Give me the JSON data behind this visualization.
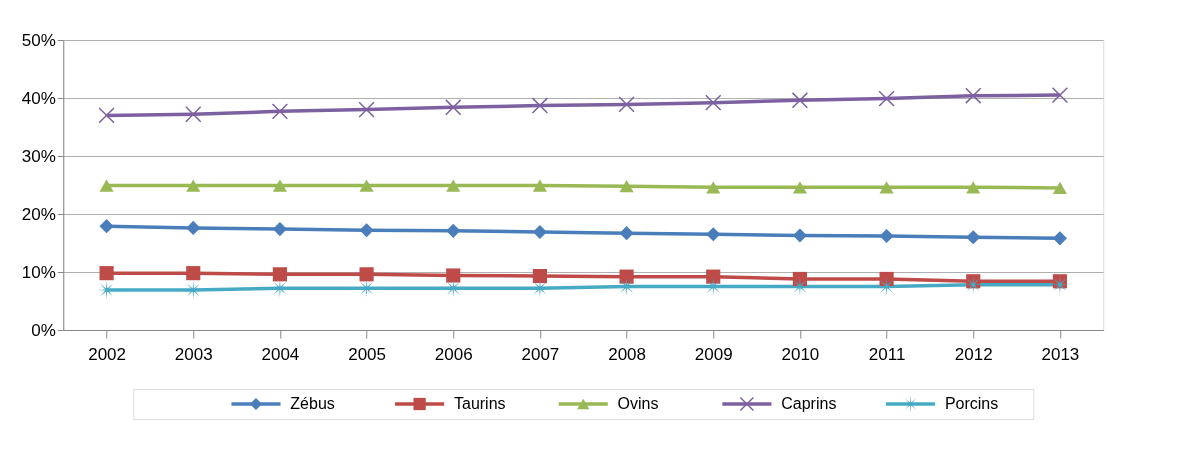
{
  "chart_data": {
    "type": "line",
    "categories": [
      "2002",
      "2003",
      "2004",
      "2005",
      "2006",
      "2007",
      "2008",
      "2009",
      "2010",
      "2011",
      "2012",
      "2013"
    ],
    "series": [
      {
        "name": "Zébus",
        "color": "#4a7ebb",
        "marker": "diamond",
        "values": [
          17.9,
          17.6,
          17.4,
          17.2,
          17.1,
          16.9,
          16.7,
          16.5,
          16.3,
          16.2,
          16.0,
          15.8
        ]
      },
      {
        "name": "Taurins",
        "color": "#be4b48",
        "marker": "square",
        "values": [
          9.8,
          9.8,
          9.6,
          9.6,
          9.4,
          9.3,
          9.2,
          9.2,
          8.8,
          8.8,
          8.4,
          8.4
        ]
      },
      {
        "name": "Ovins",
        "color": "#98b954",
        "marker": "triangle",
        "values": [
          24.9,
          24.9,
          24.9,
          24.9,
          24.9,
          24.9,
          24.8,
          24.6,
          24.6,
          24.6,
          24.6,
          24.5
        ]
      },
      {
        "name": "Caprins",
        "color": "#7d60a0",
        "marker": "cross",
        "values": [
          37.0,
          37.2,
          37.7,
          38.0,
          38.4,
          38.7,
          38.9,
          39.2,
          39.6,
          39.9,
          40.4,
          40.5
        ]
      },
      {
        "name": "Porcins",
        "color": "#46aac5",
        "marker": "star",
        "values": [
          6.9,
          6.9,
          7.2,
          7.2,
          7.2,
          7.2,
          7.5,
          7.5,
          7.5,
          7.5,
          7.8,
          7.8
        ]
      }
    ],
    "ylim": [
      0,
      50
    ],
    "yticks": [
      {
        "value": 0,
        "label": "0%"
      },
      {
        "value": 10,
        "label": "10%"
      },
      {
        "value": 20,
        "label": "20%"
      },
      {
        "value": 30,
        "label": "30%"
      },
      {
        "value": 40,
        "label": "40%"
      },
      {
        "value": 50,
        "label": "50%"
      }
    ],
    "grid": "y",
    "legend": "bottom"
  }
}
